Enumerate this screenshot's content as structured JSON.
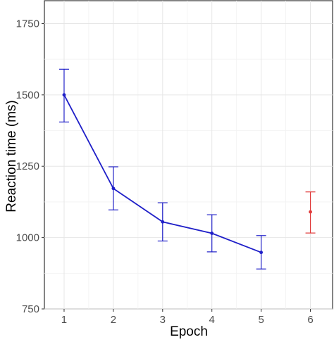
{
  "chart_data": {
    "type": "line",
    "xlabel": "Epoch",
    "ylabel": "Reaction time (ms)",
    "xlim": [
      0.6,
      6.45
    ],
    "ylim": [
      750,
      1830
    ],
    "x_ticks": [
      1,
      2,
      3,
      4,
      5,
      6
    ],
    "y_ticks": [
      750,
      1000,
      1250,
      1500,
      1750
    ],
    "grid": true,
    "series": [
      {
        "color": "#1f1fc8",
        "connected": true,
        "points": [
          {
            "x": 1,
            "y": 1500,
            "err_low": 1405,
            "err_high": 1590
          },
          {
            "x": 2,
            "y": 1172,
            "err_low": 1097,
            "err_high": 1248
          },
          {
            "x": 3,
            "y": 1055,
            "err_low": 988,
            "err_high": 1122
          },
          {
            "x": 4,
            "y": 1015,
            "err_low": 950,
            "err_high": 1080
          },
          {
            "x": 5,
            "y": 948,
            "err_low": 890,
            "err_high": 1007
          }
        ]
      },
      {
        "color": "#e03a3a",
        "connected": false,
        "points": [
          {
            "x": 6,
            "y": 1090,
            "err_low": 1016,
            "err_high": 1160
          }
        ]
      }
    ]
  }
}
